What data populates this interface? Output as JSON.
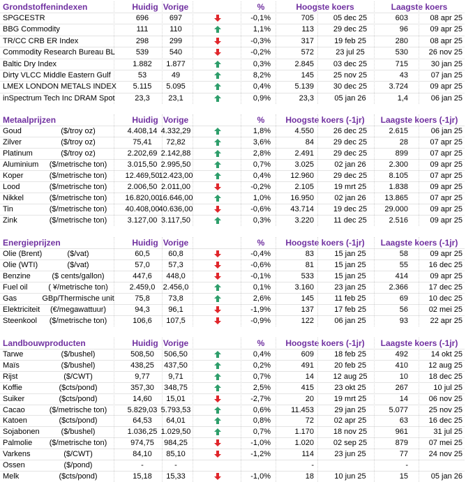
{
  "sections": [
    {
      "title": "Grondstoffenindexen",
      "headers": [
        "Huidig",
        "Vorige",
        "%",
        "Hoogste koers",
        "Laagste koers"
      ],
      "rows": [
        {
          "name": "SPGCESTR",
          "unit": null,
          "current": "696",
          "previous": "697",
          "trend": "down",
          "change": "-0,1%",
          "high": "705",
          "high_date": "05 dec 25",
          "low": "603",
          "low_date": "08 apr 25"
        },
        {
          "name": "BBG Commodity",
          "unit": null,
          "current": "111",
          "previous": "110",
          "trend": "up",
          "change": "1,1%",
          "high": "113",
          "high_date": "29 dec 25",
          "low": "96",
          "low_date": "09 apr 25"
        },
        {
          "name": "TR/CC CRB ER Index",
          "unit": null,
          "current": "298",
          "previous": "299",
          "trend": "down",
          "change": "-0,3%",
          "high": "317",
          "high_date": "19 feb 25",
          "low": "280",
          "low_date": "08 apr 25"
        },
        {
          "name": "Commodity Research Bureau BL",
          "unit": null,
          "current": "539",
          "previous": "540",
          "trend": "down",
          "change": "-0,2%",
          "high": "572",
          "high_date": "23 jul 25",
          "low": "530",
          "low_date": "26 nov 25"
        },
        {
          "name": "Baltic Dry Index",
          "unit": null,
          "current": "1.882",
          "previous": "1.877",
          "trend": "up",
          "change": "0,3%",
          "high": "2.845",
          "high_date": "03 dec 25",
          "low": "715",
          "low_date": "30 jan 25"
        },
        {
          "name": "Dirty VLCC Middle Eastern Gulf",
          "unit": null,
          "current": "53",
          "previous": "49",
          "trend": "up",
          "change": "8,2%",
          "high": "145",
          "high_date": "25 nov 25",
          "low": "43",
          "low_date": "07 jan 25"
        },
        {
          "name": "LMEX LONDON METALS INDEX",
          "unit": null,
          "current": "5.115",
          "previous": "5.095",
          "trend": "up",
          "change": "0,4%",
          "high": "5.139",
          "high_date": "30 dec 25",
          "low": "3.724",
          "low_date": "09 apr 25"
        },
        {
          "name": "inSpectrum Tech Inc DRAM Spot",
          "unit": null,
          "current": "23,3",
          "previous": "23,1",
          "trend": "up",
          "change": "0,9%",
          "high": "23,3",
          "high_date": "05 jan 26",
          "low": "1,4",
          "low_date": "06 jan 25"
        }
      ]
    },
    {
      "title": "Metaalprijzen",
      "headers": [
        "Huidig",
        "Vorige",
        "%",
        "Hoogste koers (-1jr)",
        "Laagste koers (-1jr)"
      ],
      "rows": [
        {
          "name": "Goud",
          "unit": "($/troy oz)",
          "current": "4.408,14",
          "previous": "4.332,29",
          "trend": "up",
          "change": "1,8%",
          "high": "4.550",
          "high_date": "26 dec 25",
          "low": "2.615",
          "low_date": "06 jan 25"
        },
        {
          "name": "Zilver",
          "unit": "($/troy oz)",
          "current": "75,41",
          "previous": "72,82",
          "trend": "up",
          "change": "3,6%",
          "high": "84",
          "high_date": "29 dec 25",
          "low": "28",
          "low_date": "07 apr 25"
        },
        {
          "name": "Platinum",
          "unit": "($/troy oz)",
          "current": "2.202,69",
          "previous": "2.142,88",
          "trend": "up",
          "change": "2,8%",
          "high": "2.491",
          "high_date": "29 dec 25",
          "low": "899",
          "low_date": "07 apr 25"
        },
        {
          "name": "Aluminium",
          "unit": "($/metrische ton)",
          "current": "3.015,50",
          "previous": "2.995,50",
          "trend": "up",
          "change": "0,7%",
          "high": "3.025",
          "high_date": "02 jan 26",
          "low": "2.300",
          "low_date": "09 apr 25"
        },
        {
          "name": "Koper",
          "unit": "($/metrische ton)",
          "current": "12.469,50",
          "previous": "12.423,00",
          "trend": "up",
          "change": "0,4%",
          "high": "12.960",
          "high_date": "29 dec 25",
          "low": "8.105",
          "low_date": "07 apr 25"
        },
        {
          "name": "Lood",
          "unit": "($/metrische ton)",
          "current": "2.006,50",
          "previous": "2.011,00",
          "trend": "down",
          "change": "-0,2%",
          "high": "2.105",
          "high_date": "19 mrt 25",
          "low": "1.838",
          "low_date": "09 apr 25"
        },
        {
          "name": "Nikkel",
          "unit": "($/metrische ton)",
          "current": "16.820,00",
          "previous": "16.646,00",
          "trend": "up",
          "change": "1,0%",
          "high": "16.950",
          "high_date": "02 jan 26",
          "low": "13.865",
          "low_date": "07 apr 25"
        },
        {
          "name": "Tin",
          "unit": "($/metrische ton)",
          "current": "40.408,00",
          "previous": "40.636,00",
          "trend": "down",
          "change": "-0,6%",
          "high": "43.714",
          "high_date": "19 dec 25",
          "low": "29.000",
          "low_date": "09 apr 25"
        },
        {
          "name": "Zink",
          "unit": "($/metrische ton)",
          "current": "3.127,00",
          "previous": "3.117,50",
          "trend": "up",
          "change": "0,3%",
          "high": "3.220",
          "high_date": "11 dec 25",
          "low": "2.516",
          "low_date": "09 apr 25"
        }
      ]
    },
    {
      "title": "Energieprijzen",
      "headers": [
        "Huidig",
        "Vorige",
        "%",
        "Hoogste koers (-1jr)",
        "Laagste koers (-1jr)"
      ],
      "rows": [
        {
          "name": "Olie (Brent)",
          "unit": "($/vat)",
          "current": "60,5",
          "previous": "60,8",
          "trend": "down",
          "change": "-0,4%",
          "high": "83",
          "high_date": "15 jan 25",
          "low": "58",
          "low_date": "09 apr 25"
        },
        {
          "name": "Olie (WTI)",
          "unit": "($/vat)",
          "current": "57,0",
          "previous": "57,3",
          "trend": "down",
          "change": "-0,6%",
          "high": "81",
          "high_date": "15 jan 25",
          "low": "55",
          "low_date": "16 dec 25"
        },
        {
          "name": "Benzine",
          "unit": "($ cents/gallon)",
          "current": "447,6",
          "previous": "448,0",
          "trend": "down",
          "change": "-0,1%",
          "high": "533",
          "high_date": "15 jan 25",
          "low": "414",
          "low_date": "09 apr 25"
        },
        {
          "name": "Fuel oil",
          "unit": "( ¥/metrische ton)",
          "current": "2.459,0",
          "previous": "2.456,0",
          "trend": "up",
          "change": "0,1%",
          "high": "3.160",
          "high_date": "23 jan 25",
          "low": "2.366",
          "low_date": "17 dec 25"
        },
        {
          "name": "Gas",
          "unit": "GBp/Thermische unit",
          "current": "75,8",
          "previous": "73,8",
          "trend": "up",
          "change": "2,6%",
          "high": "145",
          "high_date": "11 feb 25",
          "low": "69",
          "low_date": "10 dec 25"
        },
        {
          "name": "Elektriciteit",
          "unit": "(€/megawattuur)",
          "current": "94,3",
          "previous": "96,1",
          "trend": "down",
          "change": "-1,9%",
          "high": "137",
          "high_date": "17 feb 25",
          "low": "56",
          "low_date": "02 mei 25"
        },
        {
          "name": "Steenkool",
          "unit": "($/metrische ton)",
          "current": "106,6",
          "previous": "107,5",
          "trend": "down",
          "change": "-0,9%",
          "high": "122",
          "high_date": "06 jan 25",
          "low": "93",
          "low_date": "22 apr 25"
        }
      ]
    },
    {
      "title": "Landbouwproducten",
      "headers": [
        "Huidig",
        "Vorige",
        "%",
        "Hoogste koers (-1jr)",
        "Laagste koers (-1jr)"
      ],
      "rows": [
        {
          "name": "Tarwe",
          "unit": "($/bushel)",
          "current": "508,50",
          "previous": "506,50",
          "trend": "up",
          "change": "0,4%",
          "high": "609",
          "high_date": "18 feb 25",
          "low": "492",
          "low_date": "14 okt 25"
        },
        {
          "name": "Maïs",
          "unit": "($/bushel)",
          "current": "438,25",
          "previous": "437,50",
          "trend": "up",
          "change": "0,2%",
          "high": "491",
          "high_date": "20 feb 25",
          "low": "410",
          "low_date": "12 aug 25"
        },
        {
          "name": "Rijst",
          "unit": "($/CWT)",
          "current": "9,77",
          "previous": "9,71",
          "trend": "up",
          "change": "0,7%",
          "high": "14",
          "high_date": "12 aug 25",
          "low": "10",
          "low_date": "18 dec 25"
        },
        {
          "name": "Koffie",
          "unit": "($cts/pond)",
          "current": "357,30",
          "previous": "348,75",
          "trend": "up",
          "change": "2,5%",
          "high": "415",
          "high_date": "23 okt 25",
          "low": "267",
          "low_date": "10 jul 25"
        },
        {
          "name": "Suiker",
          "unit": "($cts/pond)",
          "current": "14,60",
          "previous": "15,01",
          "trend": "down",
          "change": "-2,7%",
          "high": "20",
          "high_date": "19 mrt 25",
          "low": "14",
          "low_date": "06 nov 25"
        },
        {
          "name": "Cacao",
          "unit": "($/metrische ton)",
          "current": "5.829,03",
          "previous": "5.793,53",
          "trend": "up",
          "change": "0,6%",
          "high": "11.453",
          "high_date": "29 jan 25",
          "low": "5.077",
          "low_date": "25 nov 25"
        },
        {
          "name": "Katoen",
          "unit": "($cts/pond)",
          "current": "64,53",
          "previous": "64,01",
          "trend": "up",
          "change": "0,8%",
          "high": "72",
          "high_date": "02 apr 25",
          "low": "63",
          "low_date": "16 dec 25"
        },
        {
          "name": "Sojabonen",
          "unit": "($/bushel)",
          "current": "1.036,25",
          "previous": "1.029,50",
          "trend": "up",
          "change": "0,7%",
          "high": "1.170",
          "high_date": "18 nov 25",
          "low": "961",
          "low_date": "31 jul 25"
        },
        {
          "name": "Palmolie",
          "unit": "($/metrische ton)",
          "current": "974,75",
          "previous": "984,25",
          "trend": "down",
          "change": "-1,0%",
          "high": "1.020",
          "high_date": "02 sep 25",
          "low": "879",
          "low_date": "07 mei 25"
        },
        {
          "name": "Varkens",
          "unit": "($/CWT)",
          "current": "84,10",
          "previous": "85,10",
          "trend": "down",
          "change": "-1,2%",
          "high": "114",
          "high_date": "23 jun 25",
          "low": "77",
          "low_date": "24 nov 25"
        },
        {
          "name": "Ossen",
          "unit": "($/pond)",
          "current": "-",
          "previous": "-",
          "trend": null,
          "change": null,
          "high": "-",
          "high_date": null,
          "low": "-",
          "low_date": null
        },
        {
          "name": "Melk",
          "unit": "($cts/pond)",
          "current": "15,18",
          "previous": "15,33",
          "trend": "down",
          "change": "-1,0%",
          "high": "18",
          "high_date": "10 jun 25",
          "low": "15",
          "low_date": "05 jan 26"
        }
      ]
    }
  ]
}
